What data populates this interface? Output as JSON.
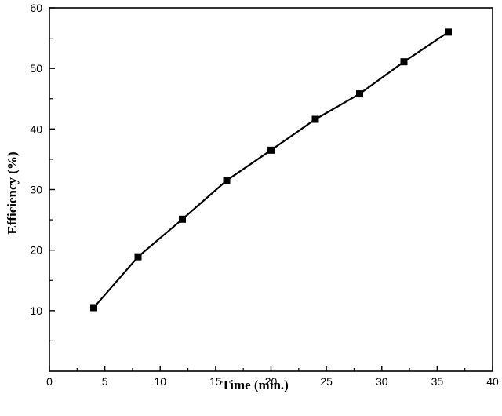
{
  "chart_data": {
    "type": "line",
    "title": "",
    "xlabel": "Time (min.)",
    "ylabel": "Efficiency (%)",
    "xlim": [
      0,
      40
    ],
    "ylim": [
      0,
      60
    ],
    "xticks": [
      0,
      5,
      10,
      15,
      20,
      25,
      30,
      35,
      40
    ],
    "yticks": [
      10,
      20,
      30,
      40,
      50,
      60
    ],
    "grid": false,
    "series": [
      {
        "marker": "square",
        "color": "#000000",
        "x": [
          4,
          8,
          12,
          16,
          20,
          24,
          28,
          32,
          36
        ],
        "y": [
          10.5,
          18.9,
          25.1,
          31.5,
          36.5,
          41.6,
          45.8,
          51.1,
          56.0
        ]
      }
    ]
  }
}
